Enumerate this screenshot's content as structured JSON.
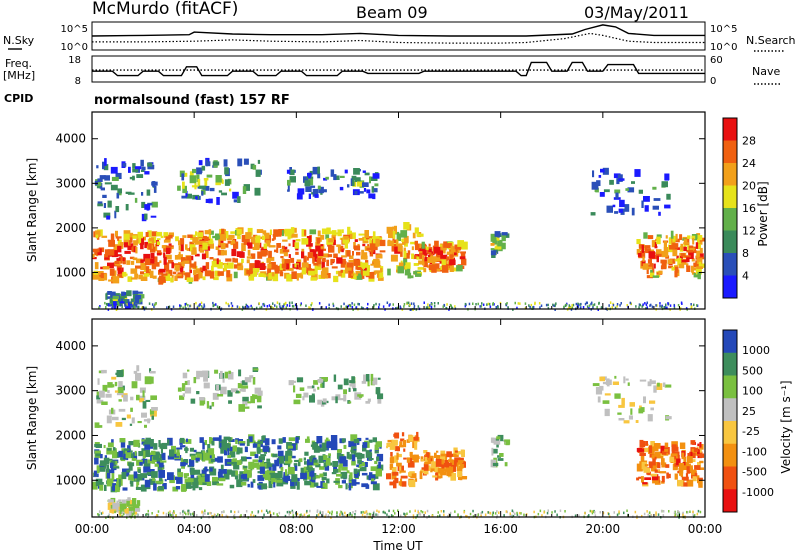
{
  "header": {
    "station": "McMurdo (fitACF)",
    "beam": "Beam 09",
    "date": "03/May/2011",
    "cpid_label": "CPID",
    "cpid_value": "normalsound (fast) 157 RF"
  },
  "strip_labels": {
    "nsky": "N.Sky",
    "nsearch": "N.Search",
    "freq_line1": "Freq.",
    "freq_line2": "[MHz]",
    "nave": "Nave",
    "noise_ticks_left": [
      "10^5",
      "10^0"
    ],
    "noise_ticks_right": [
      "10^5",
      "10^0"
    ],
    "freq_ticks": [
      "18",
      "8"
    ],
    "nave_ticks": [
      "60",
      "0"
    ]
  },
  "colors": {
    "power_scale": [
      "#1a1aff",
      "#2a4fb8",
      "#3a8a5a",
      "#62b04a",
      "#e6e21a",
      "#f2a01a",
      "#f06010",
      "#e81010"
    ],
    "velocity_scale": [
      "#e81010",
      "#f05010",
      "#f39010",
      "#f8c640",
      "#c0c0c0",
      "#7ac040",
      "#3d8d5c",
      "#2448b8"
    ]
  },
  "chart_data": [
    {
      "type": "line",
      "panel": "noise",
      "series": [
        {
          "name": "N.Sky",
          "style": "solid",
          "x": [
            0,
            2,
            3.8,
            4,
            5.5,
            7,
            9,
            10.5,
            12,
            14,
            16,
            17,
            18.8,
            19.3,
            20,
            20.5,
            21,
            22,
            24
          ],
          "y": [
            1.0,
            1.05,
            1.1,
            1.3,
            1.15,
            1.1,
            1.1,
            1.2,
            1.05,
            1.0,
            1.0,
            1.0,
            1.15,
            1.5,
            1.85,
            1.7,
            1.2,
            1.05,
            1.05
          ]
        },
        {
          "name": "N.Search",
          "style": "dotted",
          "x": [
            0,
            2,
            4,
            5.5,
            7,
            9,
            10.5,
            12,
            14,
            16,
            17,
            18.5,
            19,
            19.5,
            20,
            21,
            22,
            24
          ],
          "y": [
            0.55,
            0.55,
            0.6,
            0.7,
            0.6,
            0.55,
            0.65,
            0.5,
            0.45,
            0.45,
            0.5,
            0.8,
            1.0,
            1.2,
            1.05,
            0.6,
            0.5,
            0.5
          ]
        }
      ]
    },
    {
      "type": "line",
      "panel": "frequency",
      "series": [
        {
          "name": "Freq. [MHz]",
          "style": "solid",
          "x": [
            0,
            0.8,
            1,
            1.8,
            2,
            2.6,
            2.8,
            3.5,
            3.7,
            4.1,
            4.3,
            5.3,
            5.5,
            6.3,
            6.5,
            7.2,
            7.4,
            8.2,
            8.4,
            9.6,
            9.8,
            10.6,
            10.8,
            12.8,
            13,
            16.6,
            16.8,
            17,
            17.2,
            17.8,
            18,
            18.6,
            18.8,
            19.2,
            19.4,
            20,
            20.2,
            21.2,
            21.4,
            24
          ],
          "y": [
            12,
            12,
            10,
            10,
            12,
            12,
            10,
            10,
            14,
            14,
            10,
            10,
            12,
            12,
            10,
            10,
            12,
            12,
            10,
            10,
            12,
            12,
            11,
            11,
            12,
            12,
            10,
            10,
            16,
            16,
            12,
            12,
            16,
            16,
            12,
            12,
            15,
            15,
            11,
            11
          ]
        },
        {
          "name": "Nave",
          "style": "dotted",
          "x": [
            0,
            24
          ],
          "y": [
            27,
            27
          ]
        }
      ]
    },
    {
      "type": "heatmap",
      "title": "Power [dB]",
      "xlabel": "",
      "ylabel": "Slant Range [km]",
      "xlim": [
        0,
        24
      ],
      "ylim": [
        180,
        4600
      ],
      "xticks": [
        "00:00",
        "04:00",
        "08:00",
        "12:00",
        "16:00",
        "20:00",
        "00:00"
      ],
      "yticks": [
        "1000",
        "2000",
        "3000",
        "4000"
      ],
      "colorbar_ticks": [
        "4",
        "8",
        "12",
        "16",
        "20",
        "24",
        "28"
      ],
      "colorbar_range": [
        0,
        32
      ]
    },
    {
      "type": "heatmap",
      "title": "Velocity [m s⁻¹]",
      "xlabel": "Time UT",
      "ylabel": "Slant Range [km]",
      "xlim": [
        0,
        24
      ],
      "ylim": [
        180,
        4600
      ],
      "xticks": [
        "00:00",
        "04:00",
        "08:00",
        "12:00",
        "16:00",
        "20:00",
        "00:00"
      ],
      "yticks": [
        "1000",
        "2000",
        "3000",
        "4000"
      ],
      "colorbar_ticks": [
        "-1000",
        "-500",
        "-100",
        "-25",
        "25",
        "100",
        "500",
        "1000"
      ]
    }
  ]
}
